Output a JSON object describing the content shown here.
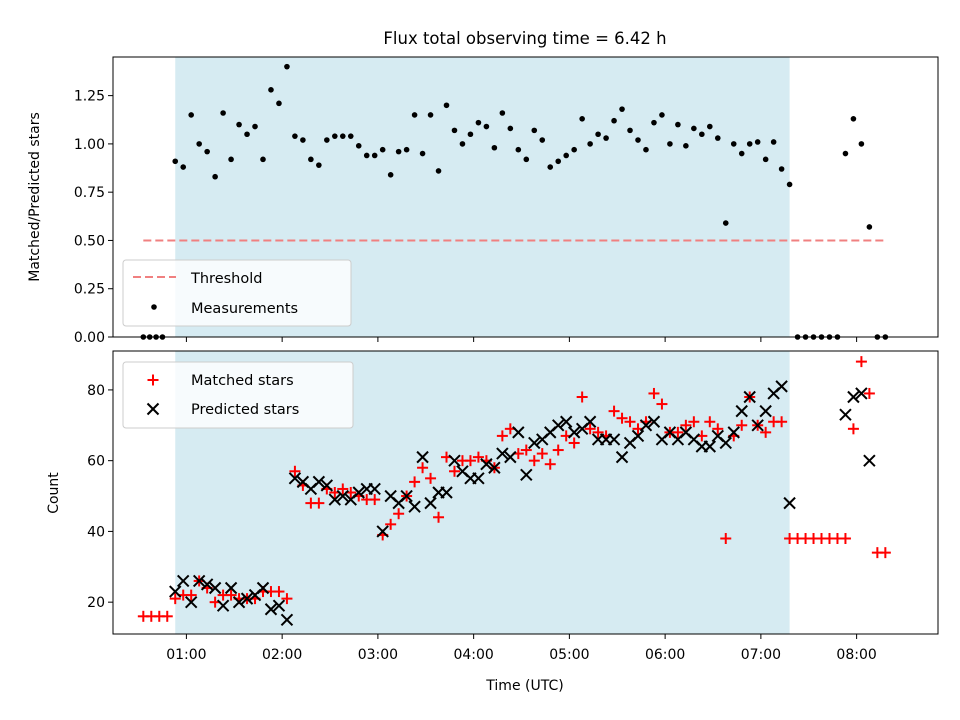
{
  "title": "Flux total observing time = 6.42 h",
  "colors": {
    "shade": "#add8e6",
    "matched": "#ff0000",
    "predicted": "#000000",
    "threshold": "#f08080"
  },
  "chart_data": [
    {
      "type": "scatter",
      "name": "ratio",
      "title": "Flux total observing time = 6.42 h",
      "xlabel": "",
      "ylabel": "Matched/Predicted stars",
      "xlim": [
        "00:14",
        "08:51"
      ],
      "ylim": [
        0.0,
        1.45
      ],
      "yticks": [
        "0.00",
        "0.25",
        "0.50",
        "0.75",
        "1.00",
        "1.25"
      ],
      "shade": [
        "00:53",
        "07:18"
      ],
      "legend_position": "lower-left",
      "threshold": {
        "name": "Threshold",
        "value": 0.5,
        "x": [
          "00:33",
          "08:18"
        ]
      },
      "measurements": {
        "name": "Measurements",
        "x": [
          "00:33",
          "00:37",
          "00:41",
          "00:45",
          "00:53",
          "00:58",
          "01:03",
          "01:08",
          "01:13",
          "01:18",
          "01:23",
          "01:28",
          "01:33",
          "01:38",
          "01:43",
          "01:48",
          "01:53",
          "01:58",
          "02:03",
          "02:08",
          "02:13",
          "02:18",
          "02:23",
          "02:28",
          "02:33",
          "02:38",
          "02:43",
          "02:48",
          "02:53",
          "02:58",
          "03:03",
          "03:08",
          "03:13",
          "03:18",
          "03:23",
          "03:28",
          "03:33",
          "03:38",
          "03:43",
          "03:48",
          "03:53",
          "03:58",
          "04:03",
          "04:08",
          "04:13",
          "04:18",
          "04:23",
          "04:28",
          "04:33",
          "04:38",
          "04:43",
          "04:48",
          "04:53",
          "04:58",
          "05:03",
          "05:08",
          "05:13",
          "05:18",
          "05:23",
          "05:28",
          "05:33",
          "05:38",
          "05:43",
          "05:48",
          "05:53",
          "05:58",
          "06:03",
          "06:08",
          "06:13",
          "06:18",
          "06:23",
          "06:28",
          "06:33",
          "06:38",
          "06:43",
          "06:48",
          "06:53",
          "06:58",
          "07:03",
          "07:08",
          "07:13",
          "07:18",
          "07:23",
          "07:28",
          "07:33",
          "07:38",
          "07:43",
          "07:48",
          "07:53",
          "07:58",
          "08:03",
          "08:08",
          "08:13",
          "08:18"
        ],
        "y": [
          0,
          0,
          0,
          0,
          0.91,
          0.88,
          1.15,
          1.0,
          0.96,
          0.83,
          1.16,
          0.92,
          1.1,
          1.05,
          1.09,
          0.92,
          1.28,
          1.21,
          1.4,
          1.04,
          1.02,
          0.92,
          0.89,
          1.02,
          1.04,
          1.04,
          1.04,
          0.99,
          0.94,
          0.94,
          0.97,
          0.84,
          0.96,
          0.97,
          1.15,
          0.95,
          1.15,
          0.86,
          1.2,
          1.07,
          1.0,
          1.05,
          1.11,
          1.09,
          0.98,
          1.16,
          1.08,
          0.97,
          0.92,
          1.07,
          1.02,
          0.88,
          0.91,
          0.94,
          0.97,
          1.13,
          1.0,
          1.05,
          1.03,
          1.12,
          1.18,
          1.07,
          1.02,
          0.97,
          1.11,
          1.15,
          1.0,
          1.1,
          0.99,
          1.08,
          1.05,
          1.09,
          1.03,
          0.59,
          1.0,
          0.95,
          1.0,
          1.01,
          0.92,
          1.01,
          0.87,
          0.79,
          0,
          0,
          0,
          0,
          0,
          0,
          0.95,
          1.13,
          1.0,
          0.57,
          0,
          0
        ]
      }
    },
    {
      "type": "scatter",
      "name": "counts",
      "title": "",
      "xlabel": "Time (UTC)",
      "ylabel": "Count",
      "xlim": [
        "00:14",
        "08:51"
      ],
      "ylim": [
        11,
        91
      ],
      "xticks": [
        "01:00",
        "02:00",
        "03:00",
        "04:00",
        "05:00",
        "06:00",
        "07:00",
        "08:00"
      ],
      "yticks": [
        "20",
        "40",
        "60",
        "80"
      ],
      "shade": [
        "00:53",
        "07:18"
      ],
      "legend_position": "upper-left",
      "series": [
        {
          "name": "Matched stars",
          "marker": "plus",
          "x": [
            "00:33",
            "00:38",
            "00:43",
            "00:48",
            "00:53",
            "00:58",
            "01:03",
            "01:08",
            "01:13",
            "01:18",
            "01:23",
            "01:28",
            "01:33",
            "01:38",
            "01:43",
            "01:48",
            "01:53",
            "01:58",
            "02:03",
            "02:08",
            "02:13",
            "02:18",
            "02:23",
            "02:28",
            "02:33",
            "02:38",
            "02:43",
            "02:48",
            "02:53",
            "02:58",
            "03:03",
            "03:08",
            "03:13",
            "03:18",
            "03:23",
            "03:28",
            "03:33",
            "03:38",
            "03:43",
            "03:48",
            "03:53",
            "03:58",
            "04:03",
            "04:08",
            "04:13",
            "04:18",
            "04:23",
            "04:28",
            "04:33",
            "04:38",
            "04:43",
            "04:48",
            "04:53",
            "04:58",
            "05:03",
            "05:08",
            "05:13",
            "05:18",
            "05:23",
            "05:28",
            "05:33",
            "05:38",
            "05:43",
            "05:48",
            "05:53",
            "05:58",
            "06:03",
            "06:08",
            "06:13",
            "06:18",
            "06:23",
            "06:28",
            "06:33",
            "06:38",
            "06:43",
            "06:48",
            "06:53",
            "06:58",
            "07:03",
            "07:08",
            "07:13",
            "07:18",
            "07:23",
            "07:28",
            "07:33",
            "07:38",
            "07:43",
            "07:48",
            "07:53",
            "07:58",
            "08:03",
            "08:08",
            "08:13",
            "08:18"
          ],
          "y": [
            16,
            16,
            16,
            16,
            21,
            22,
            22,
            26,
            24,
            20,
            22,
            22,
            21,
            21,
            21,
            23,
            23,
            23,
            21,
            57,
            53,
            48,
            48,
            52,
            51,
            52,
            51,
            50,
            49,
            49,
            39,
            42,
            45,
            50,
            54,
            58,
            55,
            44,
            61,
            57,
            60,
            60,
            61,
            60,
            58,
            67,
            69,
            62,
            63,
            60,
            62,
            59,
            63,
            67,
            65,
            78,
            69,
            68,
            67,
            74,
            72,
            71,
            69,
            71,
            79,
            76,
            68,
            68,
            70,
            71,
            67,
            71,
            69,
            38,
            67,
            70,
            78,
            70,
            68,
            71,
            71,
            38,
            38,
            38,
            38,
            38,
            38,
            38,
            38,
            69,
            88,
            79,
            34,
            34
          ]
        },
        {
          "name": "Predicted stars",
          "marker": "x",
          "x": [
            "00:53",
            "00:58",
            "01:03",
            "01:08",
            "01:13",
            "01:18",
            "01:23",
            "01:28",
            "01:33",
            "01:38",
            "01:43",
            "01:48",
            "01:53",
            "01:58",
            "02:03",
            "02:08",
            "02:13",
            "02:18",
            "02:23",
            "02:28",
            "02:33",
            "02:38",
            "02:43",
            "02:48",
            "02:53",
            "02:58",
            "03:03",
            "03:08",
            "03:13",
            "03:18",
            "03:23",
            "03:28",
            "03:33",
            "03:38",
            "03:43",
            "03:48",
            "03:53",
            "03:58",
            "04:03",
            "04:08",
            "04:13",
            "04:18",
            "04:23",
            "04:28",
            "04:33",
            "04:38",
            "04:43",
            "04:48",
            "04:53",
            "04:58",
            "05:03",
            "05:08",
            "05:13",
            "05:18",
            "05:23",
            "05:28",
            "05:33",
            "05:38",
            "05:43",
            "05:48",
            "05:53",
            "05:58",
            "06:03",
            "06:08",
            "06:13",
            "06:18",
            "06:23",
            "06:28",
            "06:33",
            "06:38",
            "06:43",
            "06:48",
            "06:53",
            "06:58",
            "07:03",
            "07:08",
            "07:13",
            "07:18",
            "07:53",
            "07:58",
            "08:03",
            "08:08"
          ],
          "y": [
            23,
            26,
            20,
            26,
            25,
            24,
            19,
            24,
            20,
            21,
            22,
            24,
            18,
            19,
            15,
            55,
            54,
            52,
            54,
            53,
            49,
            50,
            49,
            51,
            52,
            52,
            40,
            50,
            48,
            50,
            47,
            61,
            48,
            51,
            51,
            60,
            57,
            55,
            55,
            59,
            58,
            62,
            61,
            68,
            56,
            65,
            66,
            68,
            70,
            71,
            68,
            69,
            71,
            66,
            66,
            66,
            61,
            65,
            67,
            70,
            71,
            66,
            68,
            66,
            68,
            66,
            64,
            64,
            67,
            65,
            68,
            74,
            78,
            70,
            74,
            79,
            81,
            48,
            73,
            78,
            79,
            60
          ]
        }
      ]
    }
  ]
}
